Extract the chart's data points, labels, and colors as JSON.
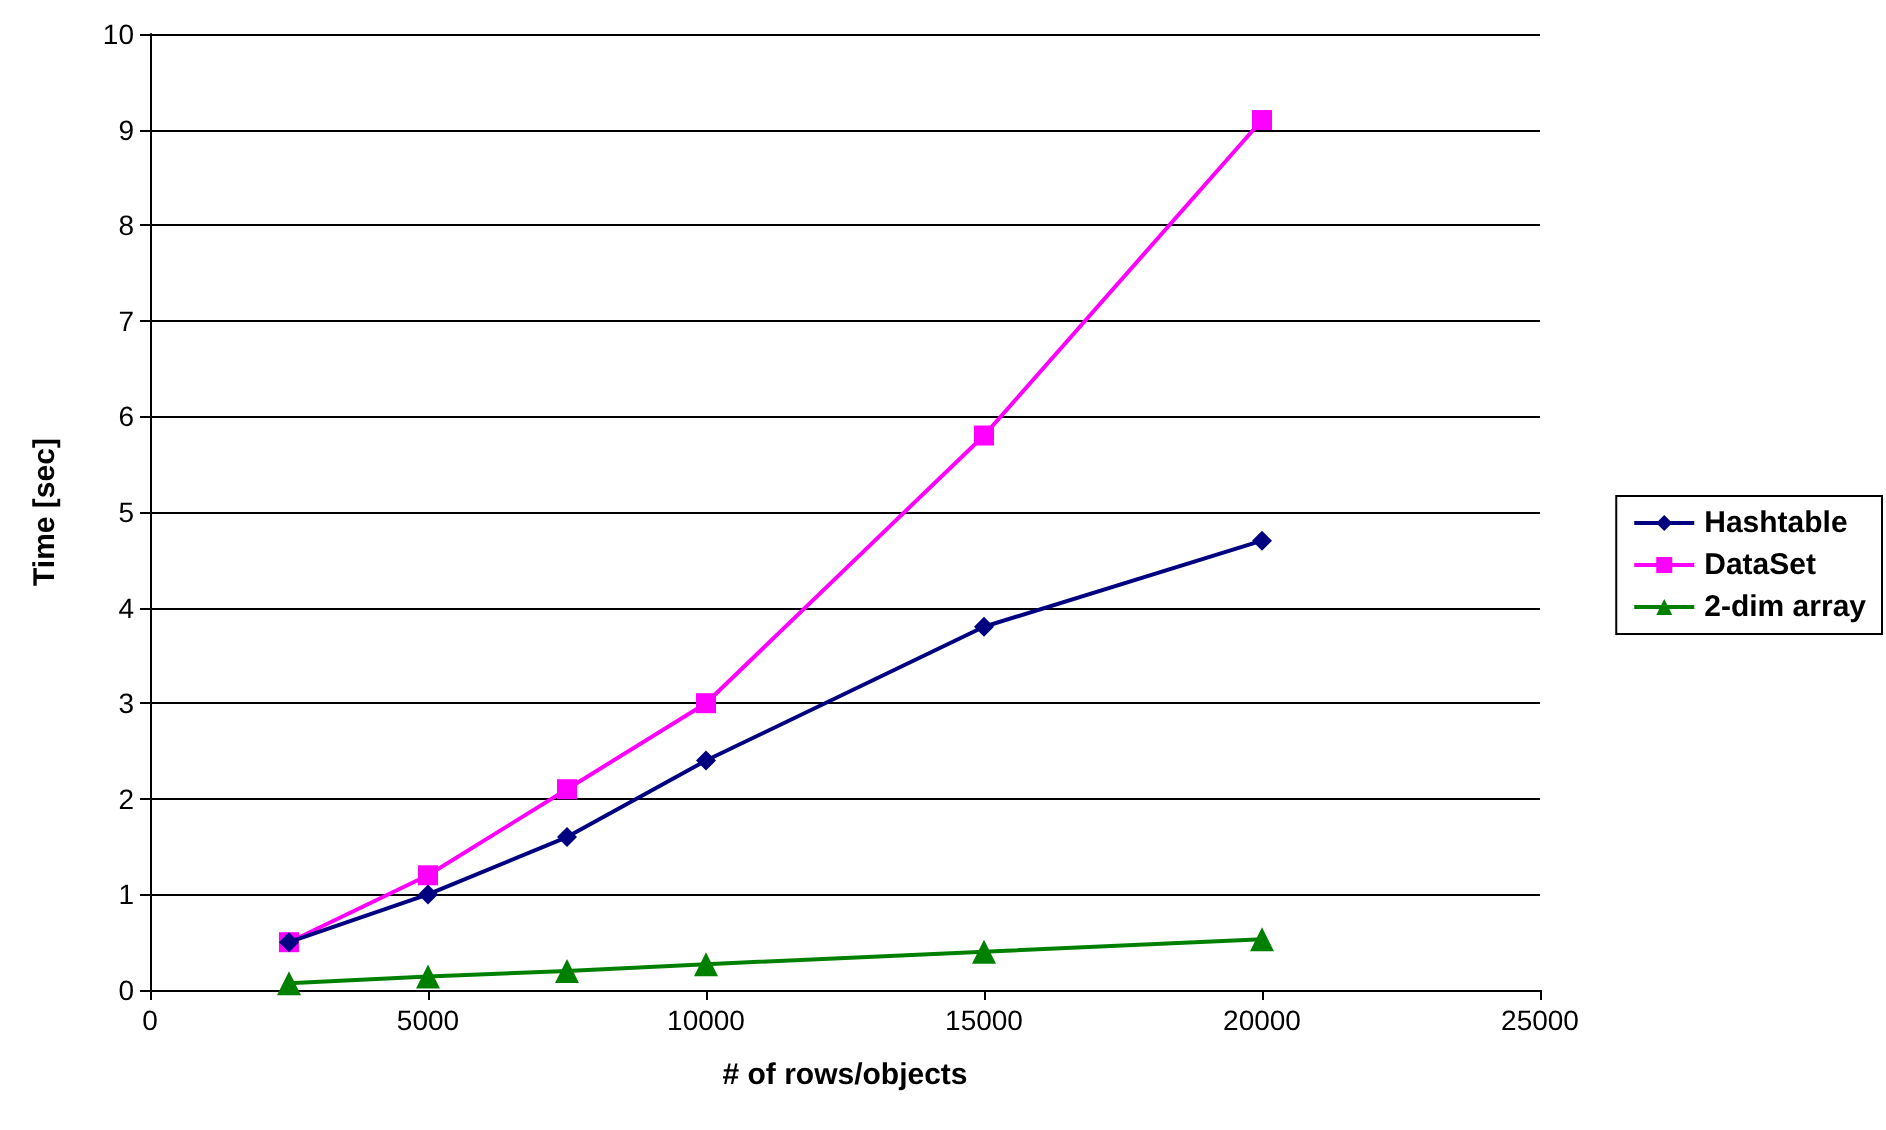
{
  "chart_data": {
    "type": "line",
    "xlabel": "# of rows/objects",
    "ylabel": "Time [sec]",
    "xlim": [
      0,
      25000
    ],
    "xticks": [
      0,
      5000,
      10000,
      15000,
      20000,
      25000
    ],
    "ylim": [
      0,
      10
    ],
    "yticks": [
      0,
      1,
      2,
      3,
      4,
      5,
      6,
      7,
      8,
      9,
      10
    ],
    "grid": "y",
    "legend": "right",
    "line_style": "solid",
    "series": [
      {
        "name": "Hashtable",
        "color": "#000080",
        "marker": "diamond",
        "x": [
          2500,
          5000,
          7500,
          10000,
          15000,
          20000
        ],
        "values": [
          0.5,
          1.0,
          1.6,
          2.4,
          3.8,
          4.7
        ]
      },
      {
        "name": "DataSet",
        "color": "#ff00ff",
        "marker": "square",
        "x": [
          2500,
          5000,
          7500,
          10000,
          15000,
          20000
        ],
        "values": [
          0.5,
          1.2,
          2.1,
          3.0,
          5.8,
          9.1
        ]
      },
      {
        "name": "2-dim array",
        "color": "#008000",
        "marker": "triangle",
        "x": [
          2500,
          5000,
          7500,
          10000,
          15000,
          20000
        ],
        "values": [
          0.07,
          0.14,
          0.2,
          0.27,
          0.4,
          0.53
        ]
      }
    ]
  }
}
